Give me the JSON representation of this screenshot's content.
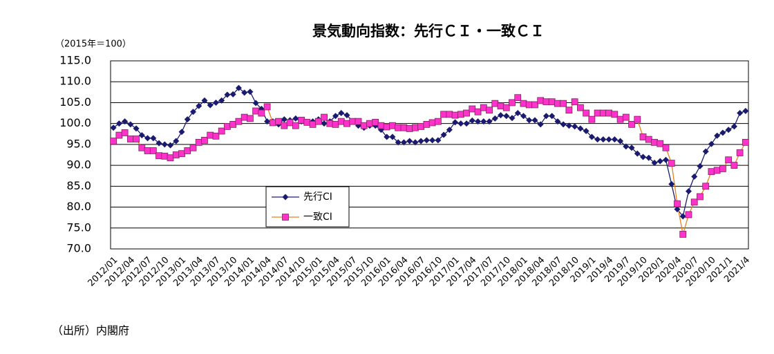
{
  "chart_data": {
    "type": "line",
    "title": "景気動向指数：先行ＣＩ・一致ＣＩ",
    "y_unit_label": "（2015年＝100）",
    "categories": [
      "2012/01",
      null,
      null,
      "2012/04",
      null,
      null,
      "2012/07",
      null,
      null,
      "2012/10",
      null,
      null,
      "2013/01",
      null,
      null,
      "2013/04",
      null,
      null,
      "2013/07",
      null,
      null,
      "2013/10",
      null,
      null,
      "2014/01",
      null,
      null,
      "2014/04",
      null,
      null,
      "2014/07",
      null,
      null,
      "2014/10",
      null,
      null,
      "2015/01",
      null,
      null,
      "2015/04",
      null,
      null,
      "2015/07",
      null,
      null,
      "2015/10",
      null,
      null,
      "2016/01",
      null,
      null,
      "2016/04",
      null,
      null,
      "2016/07",
      null,
      null,
      "2016/10",
      null,
      null,
      "2017/01",
      null,
      null,
      "2017/04",
      null,
      null,
      "2017/07",
      null,
      null,
      "2017/10",
      null,
      null,
      "2018/01",
      null,
      null,
      "2018/04",
      null,
      null,
      "2018/07",
      null,
      null,
      "2018/10",
      null,
      null,
      "2019/1",
      null,
      null,
      "2019/4",
      null,
      null,
      "2019/7",
      null,
      null,
      "2019/10",
      null,
      null,
      "2020/1",
      null,
      null,
      "2020/4",
      null,
      null,
      "2020/7",
      null,
      null,
      "2020/10",
      null,
      null,
      "2021/1",
      null,
      null,
      "2021/4"
    ],
    "series": [
      {
        "name": "先行CI",
        "color": "#1a1a6e",
        "marker": "diamond",
        "marker_color": "#1a1a6e",
        "values": [
          99.0,
          100.0,
          100.5,
          99.8,
          98.8,
          97.2,
          96.5,
          96.5,
          95.3,
          95.0,
          94.8,
          95.8,
          98.0,
          101.0,
          102.8,
          104.2,
          105.5,
          104.4,
          105.0,
          105.5,
          106.9,
          107.0,
          108.5,
          107.4,
          107.6,
          104.9,
          103.5,
          100.5,
          100.5,
          99.8,
          101.0,
          100.8,
          101.2,
          100.5,
          100.2,
          100.5,
          101.0,
          100.0,
          100.5,
          101.8,
          102.5,
          102.0,
          100.5,
          99.5,
          99.0,
          99.5,
          99.5,
          98.5,
          96.8,
          96.8,
          95.5,
          95.5,
          95.8,
          95.5,
          95.8,
          96.0,
          96.0,
          96.0,
          97.3,
          98.5,
          100.3,
          100.0,
          100.0,
          100.7,
          100.5,
          100.5,
          100.5,
          101.2,
          102.0,
          101.8,
          101.3,
          102.5,
          101.8,
          100.8,
          100.8,
          99.8,
          101.8,
          101.8,
          100.5,
          99.8,
          99.5,
          99.3,
          98.8,
          98.2,
          96.8,
          96.2,
          96.2,
          96.2,
          96.2,
          95.8,
          94.5,
          94.2,
          92.8,
          92.0,
          91.8,
          90.6,
          91.0,
          91.3,
          85.5,
          79.5,
          77.8,
          83.8,
          87.3,
          89.8,
          93.3,
          95.1,
          97.1,
          97.8,
          98.5,
          99.3,
          102.5,
          103.0
        ]
      },
      {
        "name": "一致CI",
        "color": "#e8801a",
        "marker": "square",
        "marker_color": "#ff33cc",
        "values": [
          95.8,
          97.2,
          97.8,
          96.3,
          96.3,
          94.2,
          93.5,
          93.5,
          92.3,
          92.2,
          91.8,
          92.5,
          92.8,
          93.5,
          94.2,
          95.5,
          96.0,
          97.2,
          97.0,
          98.2,
          99.3,
          99.8,
          100.5,
          101.5,
          101.2,
          103.0,
          102.5,
          104.0,
          100.2,
          100.5,
          99.5,
          100.2,
          99.5,
          100.8,
          100.3,
          99.8,
          100.5,
          101.5,
          100.0,
          99.8,
          100.5,
          100.0,
          100.5,
          100.5,
          99.5,
          100.0,
          100.3,
          99.5,
          99.2,
          99.5,
          99.0,
          99.0,
          98.8,
          99.0,
          99.3,
          99.8,
          100.2,
          100.5,
          102.2,
          102.2,
          102.0,
          102.2,
          102.5,
          103.5,
          102.8,
          103.8,
          103.2,
          104.8,
          104.2,
          103.8,
          105.0,
          106.2,
          104.8,
          104.5,
          104.5,
          105.5,
          105.2,
          105.2,
          104.8,
          104.8,
          103.2,
          105.2,
          103.8,
          102.5,
          101.0,
          102.5,
          102.5,
          102.5,
          102.2,
          101.0,
          101.5,
          99.8,
          101.0,
          96.8,
          96.2,
          95.5,
          95.2,
          94.2,
          90.5,
          80.8,
          73.5,
          78.2,
          81.2,
          82.5,
          85.0,
          88.5,
          88.8,
          89.2,
          91.3,
          90.0,
          93.0,
          95.5
        ]
      }
    ],
    "ylim": [
      70,
      115
    ],
    "yticks": [
      {
        "value": 70,
        "label": "70.0"
      },
      {
        "value": 75,
        "label": "75.0"
      },
      {
        "value": 80,
        "label": "80.0"
      },
      {
        "value": 85,
        "label": "85.0"
      },
      {
        "value": 90,
        "label": "90.0"
      },
      {
        "value": 95,
        "label": "95.0"
      },
      {
        "value": 100,
        "label": "100.0"
      },
      {
        "value": 105,
        "label": "105.0"
      },
      {
        "value": 110,
        "label": "110.0"
      },
      {
        "value": 115,
        "label": "115.0"
      }
    ],
    "grid": true,
    "legend": "inside-center-bottom"
  },
  "source": "（出所）内閣府"
}
